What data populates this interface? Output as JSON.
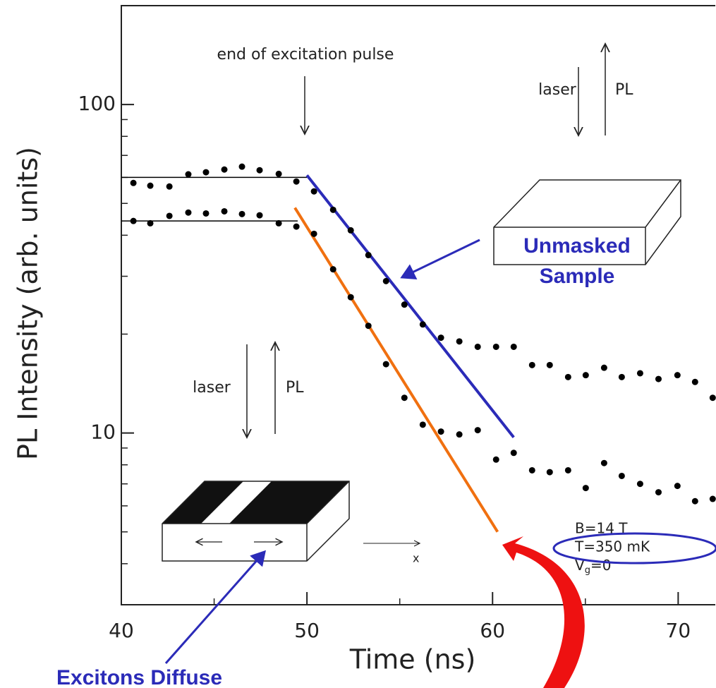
{
  "chart_data": {
    "type": "scatter",
    "x_label": "Time (ns)",
    "y_label": "PL Intensity (arb. units)",
    "log_y": true,
    "xlim": [
      40,
      72
    ],
    "ylim": [
      3,
      200
    ],
    "xticks": [
      40,
      50,
      60,
      70
    ],
    "xminor_ticks": [
      45,
      55,
      65
    ],
    "yticks": [
      10,
      100
    ],
    "yminor_ticks": [
      4,
      5,
      6,
      7,
      8,
      9,
      20,
      30,
      40,
      50,
      60,
      70,
      80,
      90
    ],
    "series": [
      {
        "color": "#000000",
        "x": [
          40.65,
          41.56,
          42.59,
          43.61,
          44.56,
          45.55,
          46.5,
          47.45,
          48.48,
          49.43,
          50.38,
          51.41,
          52.36,
          53.31,
          54.26,
          55.25,
          56.24,
          57.22,
          58.21,
          59.2,
          60.19,
          61.14,
          62.13,
          63.08,
          64.07,
          65.02,
          66.01,
          66.96,
          67.95,
          68.94,
          69.96,
          70.91,
          71.86
        ],
        "values": [
          57.7,
          56.6,
          56.3,
          61.3,
          62.2,
          63.4,
          64.7,
          63.1,
          61.5,
          58.3,
          54.4,
          47.8,
          41.4,
          34.8,
          29.0,
          24.6,
          21.4,
          19.5,
          19.0,
          18.3,
          18.3,
          18.3,
          16.1,
          16.1,
          14.8,
          15.0,
          15.8,
          14.8,
          15.2,
          14.6,
          15.0,
          14.3,
          12.8
        ]
      },
      {
        "color": "#000000",
        "x": [
          40.65,
          41.56,
          42.59,
          43.61,
          44.56,
          45.55,
          46.5,
          47.45,
          48.48,
          49.43,
          50.38,
          51.41,
          52.36,
          53.31,
          54.26,
          55.25,
          56.24,
          57.22,
          58.21,
          59.2,
          60.19,
          61.14,
          62.13,
          63.08,
          64.07,
          65.02,
          66.01,
          66.96,
          67.95,
          68.94,
          69.96,
          70.91,
          71.86
        ],
        "values": [
          44.2,
          43.5,
          45.8,
          46.9,
          46.6,
          47.3,
          46.4,
          46.0,
          43.5,
          42.5,
          40.4,
          31.5,
          25.9,
          21.2,
          16.2,
          12.8,
          10.6,
          10.1,
          9.9,
          10.2,
          8.3,
          8.7,
          7.7,
          7.6,
          7.7,
          6.8,
          8.1,
          7.4,
          7.0,
          6.6,
          6.9,
          6.2,
          6.3
        ]
      }
    ],
    "fit_lines": [
      {
        "color": "#000000",
        "x": [
          40,
          50
        ],
        "values": [
          60.0,
          60.0
        ]
      },
      {
        "color": "#000000",
        "x": [
          40,
          49.5
        ],
        "values": [
          44.2,
          44.2
        ]
      },
      {
        "color": "#2b2bb8",
        "x": [
          50,
          61.14
        ],
        "values": [
          60.9,
          9.7
        ]
      },
      {
        "color": "#f07010",
        "x": [
          49.35,
          60.27
        ],
        "values": [
          48.5,
          5.0
        ]
      }
    ]
  },
  "annotations": {
    "pulse": "end of excitation pulse",
    "laser_top": "laser",
    "pl_top": "PL",
    "unmasked": [
      "Unmasked",
      "Sample"
    ],
    "laser_mid": "laser",
    "pl_mid": "PL",
    "field": "B=14 T",
    "temp": "T=350 mK",
    "gate": {
      "base": "V",
      "sub": "g",
      "rest": "=0"
    },
    "x_dir": "x",
    "diffuse": "Excitons Diffuse"
  }
}
